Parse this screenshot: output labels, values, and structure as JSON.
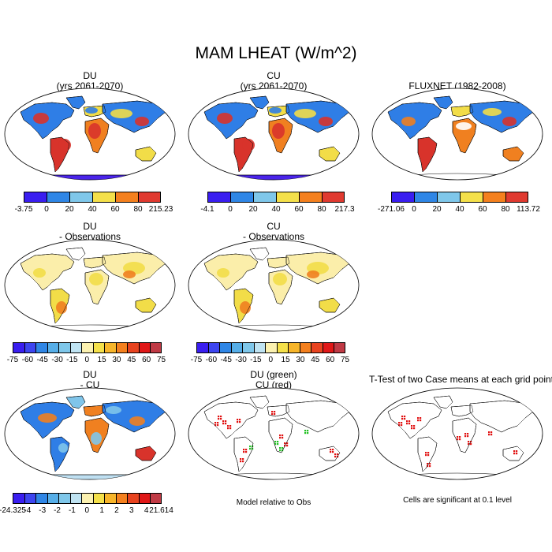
{
  "title": "MAM LHEAT (W/m^2)",
  "palettes": {
    "p6": [
      "#3a1ef0",
      "#2f86e6",
      "#7fc7ea",
      "#f4e04a",
      "#f4801e",
      "#e03a30"
    ],
    "p12": [
      "#3a1ef0",
      "#3d45f0",
      "#2f86e6",
      "#56aee8",
      "#7fc7ea",
      "#bfe3f2",
      "#fbf1b0",
      "#f4e04a",
      "#f7b52a",
      "#f4801e",
      "#e8431f",
      "#e01818",
      "#c03a45"
    ]
  },
  "panels": [
    {
      "title": [
        "DU",
        "(yrs 2061-2070)"
      ],
      "labels": [
        "-3.75",
        "0",
        "20",
        "40",
        "60",
        "80",
        "215.23"
      ],
      "palette": "p6"
    },
    {
      "title": [
        "CU",
        "(yrs 2061-2070)"
      ],
      "labels": [
        "-4.1",
        "0",
        "20",
        "40",
        "60",
        "80",
        "217.3"
      ],
      "palette": "p6"
    },
    {
      "title": [
        "FLUXNET (1982-2008)"
      ],
      "labels": [
        "-271.06",
        "0",
        "20",
        "40",
        "60",
        "80",
        "113.72"
      ],
      "palette": "p6"
    },
    {
      "title": [
        "DU",
        "- Observations"
      ],
      "labels": [
        "-75",
        "-60",
        "-45",
        "-30",
        "-15",
        "0",
        "15",
        "30",
        "45",
        "60",
        "75"
      ],
      "palette": "p12"
    },
    {
      "title": [
        "CU",
        "- Observations"
      ],
      "labels": [
        "-75",
        "-60",
        "-45",
        "-30",
        "-15",
        "0",
        "15",
        "30",
        "45",
        "60",
        "75"
      ],
      "palette": "p12"
    },
    {
      "title": [
        "DU",
        "- CU"
      ],
      "labels": [
        "-24.325",
        "-4",
        "-3",
        "-2",
        "-1",
        "0",
        "1",
        "2",
        "3",
        "4",
        "21.614"
      ],
      "palette": "p12"
    },
    {
      "title": [
        "DU (green)",
        "CU (red)"
      ],
      "footnote": "Model relative to Obs"
    },
    {
      "title": [
        "T-Test of two Case means at each grid point"
      ],
      "footnote": "Cells are significant at 0.1 level"
    }
  ]
}
